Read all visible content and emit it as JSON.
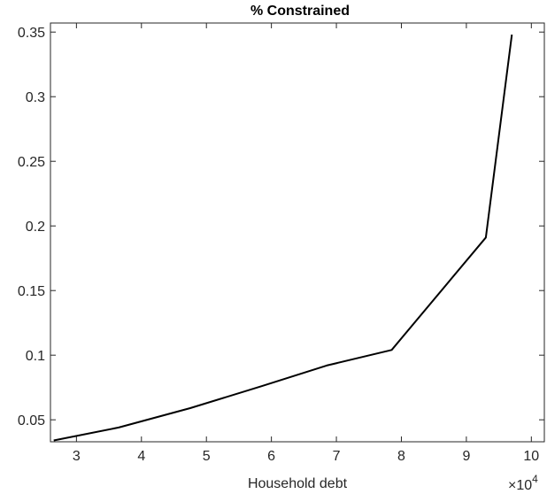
{
  "chart_data": {
    "type": "line",
    "title": "% Constrained",
    "xlabel": "Household debt",
    "ylabel": "",
    "x_exponent_label": {
      "base": "×10",
      "power": "4"
    },
    "xlim": [
      2.6,
      10.2
    ],
    "ylim": [
      0.033,
      0.357
    ],
    "x_ticks": [
      3,
      4,
      5,
      6,
      7,
      8,
      9,
      10
    ],
    "x_tick_labels": [
      "3",
      "4",
      "5",
      "6",
      "7",
      "8",
      "9",
      "10"
    ],
    "y_ticks": [
      0.05,
      0.1,
      0.15,
      0.2,
      0.25,
      0.3,
      0.35
    ],
    "y_tick_labels": [
      "0.05",
      "0.1",
      "0.15",
      "0.2",
      "0.25",
      "0.3",
      "0.35"
    ],
    "grid": false,
    "box": true,
    "series": [
      {
        "color": "#000000",
        "x": [
          2.65,
          3.65,
          4.75,
          5.85,
          6.85,
          7.85,
          9.3,
          9.7
        ],
        "y": [
          0.034,
          0.044,
          0.059,
          0.076,
          0.092,
          0.104,
          0.191,
          0.348
        ]
      }
    ]
  }
}
